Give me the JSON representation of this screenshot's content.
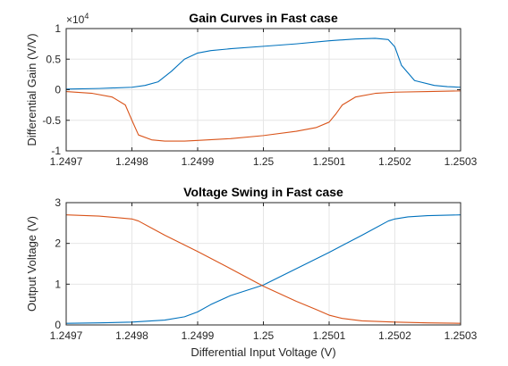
{
  "chart_data": [
    {
      "type": "line",
      "title": "Gain Curves in Fast case",
      "xlabel": "",
      "ylabel": "Differential Gain (V/V)",
      "exponent_label": "×10",
      "exponent_power": "4",
      "xlim": [
        1.2497,
        1.2503
      ],
      "ylim": [
        -1,
        1
      ],
      "xticks": [
        1.2497,
        1.2498,
        1.2499,
        1.25,
        1.2501,
        1.2502,
        1.2503
      ],
      "xtick_labels": [
        "1.2497",
        "1.2498",
        "1.2499",
        "1.25",
        "1.2501",
        "1.2502",
        "1.2503"
      ],
      "yticks": [
        -1,
        -0.5,
        0,
        0.5,
        1
      ],
      "ytick_labels": [
        "-1",
        "-0.5",
        "0",
        "0.5",
        "1"
      ],
      "grid": true,
      "series": [
        {
          "color": "#0072BD",
          "x": [
            1.2497,
            1.24975,
            1.2498,
            1.24982,
            1.24984,
            1.24986,
            1.24988,
            1.2499,
            1.24992,
            1.24995,
            1.25,
            1.25005,
            1.2501,
            1.25014,
            1.25017,
            1.25019,
            1.2502,
            1.25021,
            1.25023,
            1.25026,
            1.25028,
            1.2503
          ],
          "y": [
            0.01,
            0.02,
            0.04,
            0.07,
            0.13,
            0.3,
            0.5,
            0.6,
            0.64,
            0.67,
            0.71,
            0.75,
            0.8,
            0.83,
            0.84,
            0.82,
            0.7,
            0.4,
            0.15,
            0.07,
            0.05,
            0.04
          ]
        },
        {
          "color": "#D95319",
          "x": [
            1.2497,
            1.24974,
            1.24977,
            1.24979,
            1.2498,
            1.24981,
            1.24983,
            1.24985,
            1.24988,
            1.2499,
            1.24995,
            1.25,
            1.25005,
            1.25008,
            1.2501,
            1.25011,
            1.25012,
            1.25014,
            1.25017,
            1.2502,
            1.25025,
            1.2503
          ],
          "y": [
            -0.03,
            -0.06,
            -0.12,
            -0.25,
            -0.5,
            -0.74,
            -0.82,
            -0.84,
            -0.84,
            -0.83,
            -0.8,
            -0.75,
            -0.68,
            -0.62,
            -0.53,
            -0.4,
            -0.25,
            -0.12,
            -0.06,
            -0.04,
            -0.03,
            -0.02
          ]
        }
      ]
    },
    {
      "type": "line",
      "title": "Voltage Swing in Fast case",
      "xlabel": "Differential Input Voltage (V)",
      "ylabel": "Output Voltage (V)",
      "xlim": [
        1.2497,
        1.2503
      ],
      "ylim": [
        0,
        3
      ],
      "xticks": [
        1.2497,
        1.2498,
        1.2499,
        1.25,
        1.2501,
        1.2502,
        1.2503
      ],
      "xtick_labels": [
        "1.2497",
        "1.2498",
        "1.2499",
        "1.25",
        "1.2501",
        "1.2502",
        "1.2503"
      ],
      "yticks": [
        0,
        1,
        2,
        3
      ],
      "ytick_labels": [
        "0",
        "1",
        "2",
        "3"
      ],
      "grid": true,
      "series": [
        {
          "color": "#0072BD",
          "x": [
            1.2497,
            1.24975,
            1.2498,
            1.24985,
            1.24988,
            1.2499,
            1.24992,
            1.24995,
            1.25,
            1.25005,
            1.2501,
            1.25015,
            1.25019,
            1.2502,
            1.25022,
            1.25025,
            1.2503
          ],
          "y": [
            0.04,
            0.05,
            0.07,
            0.12,
            0.2,
            0.32,
            0.5,
            0.72,
            0.98,
            1.38,
            1.78,
            2.2,
            2.55,
            2.6,
            2.65,
            2.68,
            2.7
          ]
        },
        {
          "color": "#D95319",
          "x": [
            1.2497,
            1.24975,
            1.2498,
            1.24981,
            1.24985,
            1.2499,
            1.24995,
            1.25,
            1.25005,
            1.25008,
            1.2501,
            1.25012,
            1.25015,
            1.2502,
            1.25025,
            1.2503
          ],
          "y": [
            2.7,
            2.67,
            2.6,
            2.55,
            2.2,
            1.8,
            1.38,
            0.95,
            0.58,
            0.38,
            0.24,
            0.16,
            0.1,
            0.07,
            0.05,
            0.04
          ]
        }
      ]
    }
  ]
}
